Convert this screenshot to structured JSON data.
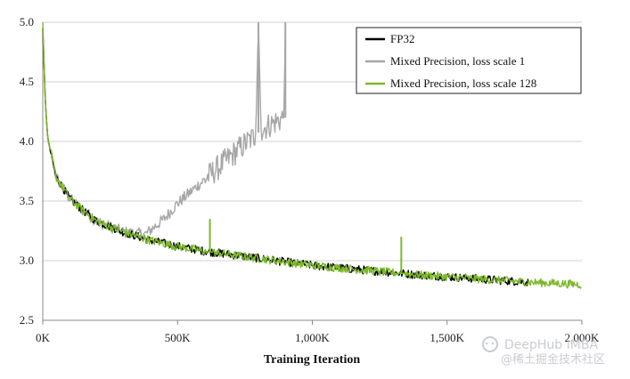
{
  "chart_data": {
    "type": "line",
    "title": "",
    "xlabel": "Training Iteration",
    "ylabel": "",
    "xlim": [
      0,
      2000000
    ],
    "ylim": [
      2.5,
      5.0
    ],
    "x_ticks": [
      0,
      500000,
      1000000,
      1500000,
      2000000
    ],
    "x_tick_labels": [
      "0K",
      "500K",
      "1,000K",
      "1,500K",
      "2,000K"
    ],
    "y_ticks": [
      2.5,
      3.0,
      3.5,
      4.0,
      4.5,
      5.0
    ],
    "y_tick_labels": [
      "2.5",
      "3.0",
      "3.5",
      "4.0",
      "4.5",
      "5.0"
    ],
    "grid": "horizontal",
    "legend_position": "top-right",
    "series": [
      {
        "name": "FP32",
        "color": "#000000",
        "noise": 0.035,
        "x": [
          0,
          10000,
          20000,
          50000,
          100000,
          150000,
          200000,
          300000,
          400000,
          500000,
          600000,
          700000,
          800000,
          900000,
          1000000,
          1200000,
          1400000,
          1600000,
          1800000
        ],
        "y": [
          4.95,
          4.3,
          4.0,
          3.7,
          3.52,
          3.42,
          3.33,
          3.24,
          3.17,
          3.12,
          3.08,
          3.05,
          3.02,
          2.99,
          2.96,
          2.92,
          2.88,
          2.85,
          2.82
        ]
      },
      {
        "name": "Mixed Precision, loss scale 1",
        "color": "#a6a6a6",
        "noise": 0.05,
        "x": [
          0,
          10000,
          20000,
          50000,
          100000,
          150000,
          200000,
          300000,
          380000,
          450000,
          500000,
          550000,
          600000,
          650000,
          700000,
          750000,
          790000,
          800000,
          810000,
          850000,
          895000,
          900000
        ],
        "y": [
          4.95,
          4.3,
          4.0,
          3.7,
          3.52,
          3.42,
          3.33,
          3.24,
          3.22,
          3.35,
          3.48,
          3.58,
          3.68,
          3.78,
          3.88,
          3.98,
          4.05,
          5.0,
          4.1,
          4.15,
          4.2,
          5.0
        ],
        "spikes": [
          [
            800000,
            5.0
          ],
          [
            900000,
            5.0
          ]
        ]
      },
      {
        "name": "Mixed Precision, loss scale 128",
        "color": "#7bb928",
        "noise": 0.035,
        "x": [
          0,
          10000,
          20000,
          50000,
          100000,
          150000,
          200000,
          300000,
          400000,
          500000,
          600000,
          700000,
          800000,
          900000,
          1000000,
          1200000,
          1400000,
          1600000,
          1800000,
          2000000
        ],
        "y": [
          5.0,
          4.3,
          4.0,
          3.7,
          3.52,
          3.42,
          3.33,
          3.24,
          3.17,
          3.12,
          3.08,
          3.05,
          3.02,
          2.99,
          2.96,
          2.92,
          2.88,
          2.85,
          2.82,
          2.8
        ],
        "spikes": [
          [
            620000,
            3.35
          ],
          [
            1330000,
            3.2
          ]
        ]
      }
    ]
  },
  "watermark": {
    "line1": "DeepHub IMBA",
    "line2": "@稀土掘金技术社区"
  }
}
